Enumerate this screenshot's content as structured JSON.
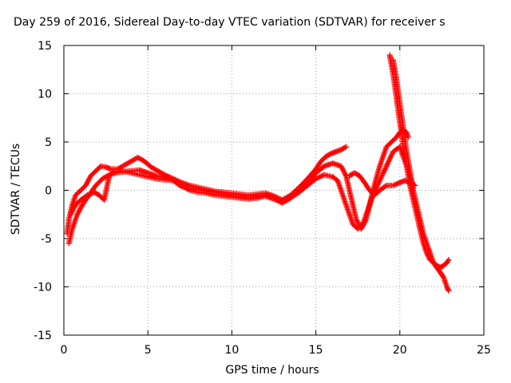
{
  "chart_data": {
    "type": "scatter",
    "title": "Day 259 of 2016, Sidereal Day-to-day VTEC variation (SDTVAR) for receiver s",
    "xlabel": "GPS time / hours",
    "ylabel": "SDTVAR / TECUs",
    "xlim": [
      0,
      25
    ],
    "ylim": [
      -15,
      15
    ],
    "xticks": [
      "0",
      "5",
      "10",
      "15",
      "20",
      "25"
    ],
    "yticks": [
      "-15",
      "-10",
      "-5",
      "0",
      "5",
      "10",
      "15"
    ],
    "grid": true,
    "marker": "+",
    "color": "#ff0000",
    "series": [
      {
        "x": [
          0.2,
          0.3,
          0.5,
          0.7,
          1.0,
          1.3,
          1.6,
          1.9,
          2.2,
          2.5,
          2.8,
          3.2,
          3.6,
          4.0,
          4.4,
          4.8,
          5.2,
          5.6,
          6.0,
          6.5,
          7.0,
          7.5,
          8.0,
          8.5,
          9.0,
          9.5,
          10.0,
          10.5,
          11.0,
          11.5,
          12.0,
          12.5,
          13.0,
          13.5,
          14.0,
          14.5,
          15.0,
          15.3,
          15.6,
          15.9,
          16.2,
          16.5,
          16.8
        ],
        "y": [
          -4.5,
          -3.0,
          -1.5,
          -0.5,
          0.0,
          0.5,
          1.5,
          2.0,
          2.5,
          2.4,
          2.2,
          2.2,
          2.6,
          3.0,
          3.4,
          3.0,
          2.4,
          2.0,
          1.6,
          1.2,
          0.8,
          0.5,
          0.3,
          0.1,
          -0.1,
          -0.2,
          -0.3,
          -0.4,
          -0.5,
          -0.4,
          -0.3,
          -0.6,
          -1.0,
          -0.5,
          0.3,
          1.2,
          2.2,
          3.0,
          3.5,
          3.8,
          4.0,
          4.2,
          4.5
        ]
      },
      {
        "x": [
          0.3,
          0.5,
          0.8,
          1.1,
          1.5,
          1.9,
          2.3,
          2.7,
          3.1,
          3.5,
          4.0,
          4.5,
          5.0,
          5.5,
          6.0,
          6.5,
          7.0,
          7.5,
          8.0,
          8.5,
          9.0,
          9.5,
          10.0,
          10.5,
          11.0,
          11.5,
          12.0,
          12.5,
          13.0,
          13.5,
          14.0,
          14.5,
          15.0,
          15.5,
          16.0,
          16.5,
          16.8,
          17.0,
          17.2,
          17.4,
          17.7,
          18.0,
          18.4,
          18.8,
          19.2,
          19.5,
          19.8,
          20.0,
          20.2,
          20.4,
          20.5
        ],
        "y": [
          -5.5,
          -4.0,
          -2.5,
          -1.5,
          -0.5,
          0.5,
          1.2,
          1.6,
          1.8,
          1.9,
          2.0,
          2.1,
          1.8,
          1.5,
          1.3,
          1.1,
          0.5,
          0.0,
          -0.2,
          -0.3,
          -0.5,
          -0.6,
          -0.7,
          -0.8,
          -0.9,
          -0.8,
          -0.6,
          -0.9,
          -1.3,
          -0.8,
          0.0,
          0.8,
          1.8,
          2.5,
          2.8,
          2.5,
          1.5,
          0.0,
          -1.5,
          -3.0,
          -4.0,
          -3.0,
          0.0,
          2.5,
          4.5,
          5.0,
          5.5,
          6.0,
          6.2,
          6.0,
          5.5
        ]
      },
      {
        "x": [
          0.4,
          0.7,
          1.0,
          1.4,
          1.8,
          2.1,
          2.4,
          2.7,
          3.0,
          3.5,
          4.0,
          4.5,
          5.0,
          5.5,
          6.0,
          6.5,
          7.0,
          7.5,
          8.0,
          8.5,
          9.0,
          9.5,
          10.0,
          10.5,
          11.0,
          11.5,
          12.0,
          12.5,
          13.0,
          13.5,
          14.0,
          14.5,
          15.0,
          15.5,
          16.0,
          16.3,
          16.6,
          16.9,
          17.2,
          17.5,
          17.8,
          18.1,
          18.4,
          18.8,
          19.2,
          19.6,
          20.0,
          20.3,
          20.6,
          20.8
        ],
        "y": [
          -2.5,
          -1.5,
          -1.0,
          -0.5,
          -0.2,
          -0.5,
          -1.0,
          1.5,
          2.0,
          2.0,
          1.8,
          1.6,
          1.4,
          1.2,
          1.1,
          1.0,
          0.4,
          0.2,
          0.1,
          -0.1,
          -0.2,
          -0.4,
          -0.5,
          -0.6,
          -0.7,
          -0.6,
          -0.5,
          -0.7,
          -1.2,
          -0.8,
          -0.2,
          0.5,
          1.2,
          1.6,
          1.4,
          1.0,
          -0.5,
          -2.0,
          -3.5,
          -4.0,
          -3.5,
          -2.0,
          -0.5,
          1.0,
          2.5,
          4.0,
          4.5,
          3.0,
          1.5,
          0.5
        ]
      },
      {
        "x": [
          17.0,
          17.3,
          17.6,
          17.9,
          18.2,
          18.5,
          18.8,
          19.2,
          19.6,
          20.0,
          20.3,
          20.6,
          20.9
        ],
        "y": [
          1.5,
          1.8,
          1.5,
          0.8,
          0.0,
          -0.5,
          0.0,
          0.5,
          0.5,
          0.8,
          1.0,
          0.8,
          0.5
        ]
      },
      {
        "x": [
          19.4,
          19.6,
          19.8,
          20.0,
          20.2,
          20.4,
          20.6,
          20.8,
          21.0,
          21.2,
          21.4,
          21.6,
          21.8,
          22.0,
          22.2,
          22.4,
          22.6,
          22.8,
          22.9
        ],
        "y": [
          14.0,
          12.0,
          9.5,
          7.0,
          4.5,
          2.5,
          0.5,
          -1.0,
          -2.5,
          -4.0,
          -5.5,
          -6.5,
          -7.2,
          -7.5,
          -7.8,
          -8.0,
          -7.8,
          -7.5,
          -7.2
        ]
      },
      {
        "x": [
          19.6,
          19.8,
          20.0,
          20.2,
          20.4,
          20.6,
          20.8,
          21.0,
          21.2,
          21.4,
          21.6,
          21.8,
          22.0,
          22.2,
          22.4,
          22.6,
          22.8,
          22.9
        ],
        "y": [
          13.5,
          11.5,
          9.0,
          6.5,
          4.0,
          2.0,
          0.0,
          -1.5,
          -3.0,
          -4.5,
          -5.5,
          -6.5,
          -7.5,
          -8.0,
          -8.5,
          -9.0,
          -10.0,
          -10.4
        ]
      }
    ]
  }
}
